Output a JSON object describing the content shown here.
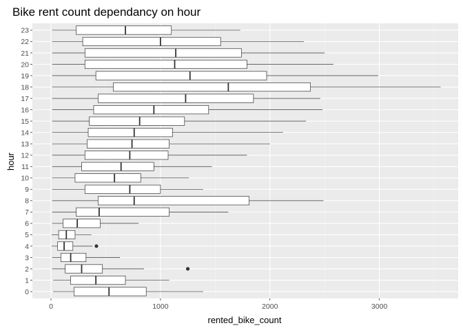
{
  "chart_data": {
    "type": "boxplot",
    "orientation": "horizontal",
    "title": "Bike rent count dependancy on hour",
    "xlabel": "rented_bike_count",
    "ylabel": "hour",
    "xlim": [
      -170,
      3720
    ],
    "x_ticks": [
      0,
      1000,
      2000,
      3000
    ],
    "x_tick_labels": [
      "0",
      "1000",
      "2000",
      "3000"
    ],
    "grid": true,
    "categories": [
      "0",
      "1",
      "2",
      "3",
      "4",
      "5",
      "6",
      "7",
      "8",
      "9",
      "10",
      "11",
      "12",
      "13",
      "14",
      "15",
      "16",
      "17",
      "18",
      "19",
      "20",
      "21",
      "22",
      "23"
    ],
    "boxes": [
      {
        "category": "0",
        "whisker_low": 20,
        "q1": 210,
        "median": 530,
        "q3": 870,
        "whisker_high": 1390,
        "outliers": []
      },
      {
        "category": "1",
        "whisker_low": 20,
        "q1": 180,
        "median": 410,
        "q3": 680,
        "whisker_high": 1080,
        "outliers": []
      },
      {
        "category": "2",
        "whisker_low": 10,
        "q1": 130,
        "median": 280,
        "q3": 470,
        "whisker_high": 850,
        "outliers": [
          1250
        ]
      },
      {
        "category": "3",
        "whisker_low": 10,
        "q1": 90,
        "median": 180,
        "q3": 320,
        "whisker_high": 630,
        "outliers": []
      },
      {
        "category": "4",
        "whisker_low": 5,
        "q1": 60,
        "median": 120,
        "q3": 200,
        "whisker_high": 380,
        "outliers": [
          415
        ]
      },
      {
        "category": "5",
        "whisker_low": 5,
        "q1": 70,
        "median": 140,
        "q3": 220,
        "whisker_high": 370,
        "outliers": []
      },
      {
        "category": "6",
        "whisker_low": 10,
        "q1": 110,
        "median": 240,
        "q3": 450,
        "whisker_high": 800,
        "outliers": []
      },
      {
        "category": "7",
        "whisker_low": 10,
        "q1": 230,
        "median": 440,
        "q3": 1080,
        "whisker_high": 1620,
        "outliers": []
      },
      {
        "category": "8",
        "whisker_low": 10,
        "q1": 430,
        "median": 760,
        "q3": 1810,
        "whisker_high": 2490,
        "outliers": []
      },
      {
        "category": "9",
        "whisker_low": 10,
        "q1": 310,
        "median": 720,
        "q3": 1000,
        "whisker_high": 1390,
        "outliers": []
      },
      {
        "category": "10",
        "whisker_low": 10,
        "q1": 220,
        "median": 580,
        "q3": 820,
        "whisker_high": 1260,
        "outliers": []
      },
      {
        "category": "11",
        "whisker_low": 10,
        "q1": 280,
        "median": 640,
        "q3": 940,
        "whisker_high": 1470,
        "outliers": []
      },
      {
        "category": "12",
        "whisker_low": 10,
        "q1": 310,
        "median": 720,
        "q3": 1070,
        "whisker_high": 1790,
        "outliers": []
      },
      {
        "category": "13",
        "whisker_low": 10,
        "q1": 330,
        "median": 740,
        "q3": 1080,
        "whisker_high": 2000,
        "outliers": []
      },
      {
        "category": "14",
        "whisker_low": 10,
        "q1": 340,
        "median": 760,
        "q3": 1110,
        "whisker_high": 2120,
        "outliers": []
      },
      {
        "category": "15",
        "whisker_low": 10,
        "q1": 350,
        "median": 810,
        "q3": 1220,
        "whisker_high": 2330,
        "outliers": []
      },
      {
        "category": "16",
        "whisker_low": 10,
        "q1": 390,
        "median": 940,
        "q3": 1440,
        "whisker_high": 2480,
        "outliers": []
      },
      {
        "category": "17",
        "whisker_low": 10,
        "q1": 430,
        "median": 1230,
        "q3": 1850,
        "whisker_high": 2460,
        "outliers": []
      },
      {
        "category": "18",
        "whisker_low": 10,
        "q1": 570,
        "median": 1620,
        "q3": 2370,
        "whisker_high": 3560,
        "outliers": []
      },
      {
        "category": "19",
        "whisker_low": 10,
        "q1": 410,
        "median": 1270,
        "q3": 1970,
        "whisker_high": 2990,
        "outliers": []
      },
      {
        "category": "20",
        "whisker_low": 10,
        "q1": 310,
        "median": 1130,
        "q3": 1790,
        "whisker_high": 2580,
        "outliers": []
      },
      {
        "category": "21",
        "whisker_low": 10,
        "q1": 310,
        "median": 1140,
        "q3": 1740,
        "whisker_high": 2500,
        "outliers": []
      },
      {
        "category": "22",
        "whisker_low": 10,
        "q1": 290,
        "median": 1000,
        "q3": 1550,
        "whisker_high": 2310,
        "outliers": []
      },
      {
        "category": "23",
        "whisker_low": 10,
        "q1": 230,
        "median": 680,
        "q3": 1100,
        "whisker_high": 1730,
        "outliers": []
      }
    ]
  },
  "colors": {
    "panel_background": "#ebebeb",
    "grid_major": "#ffffff",
    "grid_minor": "#f5f5f5",
    "box_fill": "#ffffff",
    "box_stroke": "#333333",
    "tick_color": "#333333",
    "tick_label_color": "#4d4d4d"
  }
}
